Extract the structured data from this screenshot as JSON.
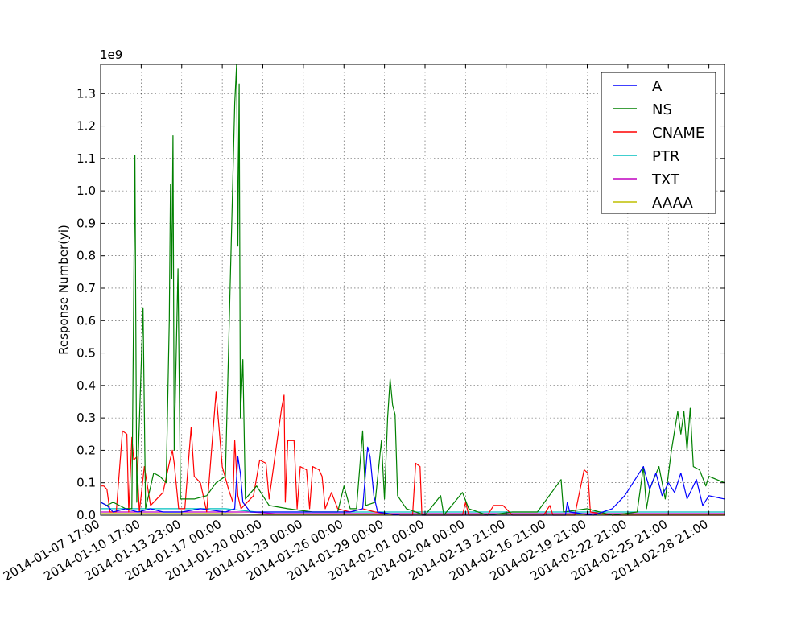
{
  "chart_data": {
    "type": "line",
    "title": "",
    "xlabel": "",
    "ylabel": "Response Number(yi)",
    "y_multiplier_label": "1e9",
    "ylim": [
      0,
      1.39
    ],
    "yticks": [
      "0.0",
      "0.1",
      "0.2",
      "0.3",
      "0.4",
      "0.5",
      "0.6",
      "0.7",
      "0.8",
      "0.9",
      "1.0",
      "1.1",
      "1.2",
      "1.3"
    ],
    "xlim": [
      0,
      1000
    ],
    "xticks": [
      {
        "x": 0,
        "label": "2014-01-07 17:00"
      },
      {
        "x": 65,
        "label": "2014-01-10 17:00"
      },
      {
        "x": 130,
        "label": "2014-01-13 23:00"
      },
      {
        "x": 195,
        "label": "2014-01-17 00:00"
      },
      {
        "x": 260,
        "label": "2014-01-20 00:00"
      },
      {
        "x": 325,
        "label": "2014-01-23 00:00"
      },
      {
        "x": 390,
        "label": "2014-01-26 00:00"
      },
      {
        "x": 455,
        "label": "2014-01-29 00:00"
      },
      {
        "x": 520,
        "label": "2014-02-01 00:00"
      },
      {
        "x": 585,
        "label": "2014-02-04 00:00"
      },
      {
        "x": 650,
        "label": "2014-02-13 21:00"
      },
      {
        "x": 715,
        "label": "2014-02-16 21:00"
      },
      {
        "x": 780,
        "label": "2014-02-19 21:00"
      },
      {
        "x": 845,
        "label": "2014-02-22 21:00"
      },
      {
        "x": 910,
        "label": "2014-02-25 21:00"
      },
      {
        "x": 975,
        "label": "2014-02-28 21:00"
      }
    ],
    "grid": true,
    "legend_position": "top-right",
    "series": [
      {
        "name": "A",
        "color": "#0000ff",
        "points": [
          [
            0,
            0.04
          ],
          [
            10,
            0.03
          ],
          [
            20,
            0.01
          ],
          [
            40,
            0.02
          ],
          [
            60,
            0.01
          ],
          [
            80,
            0.02
          ],
          [
            100,
            0.01
          ],
          [
            130,
            0.01
          ],
          [
            160,
            0.02
          ],
          [
            200,
            0.01
          ],
          [
            215,
            0.02
          ],
          [
            220,
            0.18
          ],
          [
            224,
            0.13
          ],
          [
            228,
            0.04
          ],
          [
            240,
            0.01
          ],
          [
            280,
            0.01
          ],
          [
            320,
            0.01
          ],
          [
            360,
            0.01
          ],
          [
            400,
            0.01
          ],
          [
            420,
            0.02
          ],
          [
            428,
            0.21
          ],
          [
            432,
            0.18
          ],
          [
            438,
            0.06
          ],
          [
            444,
            0.01
          ],
          [
            480,
            0.0
          ],
          [
            520,
            0.0
          ],
          [
            560,
            0.0
          ],
          [
            600,
            0.0
          ],
          [
            640,
            0.0
          ],
          [
            680,
            0.0
          ],
          [
            720,
            0.0
          ],
          [
            745,
            0.0
          ],
          [
            748,
            0.04
          ],
          [
            752,
            0.01
          ],
          [
            790,
            0.0
          ],
          [
            820,
            0.02
          ],
          [
            840,
            0.06
          ],
          [
            860,
            0.12
          ],
          [
            870,
            0.15
          ],
          [
            880,
            0.08
          ],
          [
            890,
            0.13
          ],
          [
            900,
            0.06
          ],
          [
            910,
            0.1
          ],
          [
            920,
            0.07
          ],
          [
            930,
            0.13
          ],
          [
            940,
            0.05
          ],
          [
            955,
            0.11
          ],
          [
            965,
            0.03
          ],
          [
            975,
            0.06
          ],
          [
            1000,
            0.05
          ]
        ]
      },
      {
        "name": "NS",
        "color": "#008000",
        "points": [
          [
            0,
            0.04
          ],
          [
            10,
            0.03
          ],
          [
            20,
            0.04
          ],
          [
            30,
            0.03
          ],
          [
            40,
            0.02
          ],
          [
            50,
            0.02
          ],
          [
            55,
            1.11
          ],
          [
            58,
            0.04
          ],
          [
            68,
            0.64
          ],
          [
            72,
            0.02
          ],
          [
            85,
            0.13
          ],
          [
            95,
            0.12
          ],
          [
            105,
            0.1
          ],
          [
            110,
            0.6
          ],
          [
            112,
            1.02
          ],
          [
            114,
            0.73
          ],
          [
            116,
            1.17
          ],
          [
            118,
            0.2
          ],
          [
            124,
            0.76
          ],
          [
            128,
            0.05
          ],
          [
            150,
            0.05
          ],
          [
            170,
            0.06
          ],
          [
            185,
            0.1
          ],
          [
            200,
            0.12
          ],
          [
            215,
            1.27
          ],
          [
            218,
            1.39
          ],
          [
            220,
            0.83
          ],
          [
            222,
            1.33
          ],
          [
            224,
            0.3
          ],
          [
            228,
            0.48
          ],
          [
            232,
            0.05
          ],
          [
            250,
            0.09
          ],
          [
            270,
            0.03
          ],
          [
            300,
            0.02
          ],
          [
            340,
            0.01
          ],
          [
            380,
            0.01
          ],
          [
            390,
            0.09
          ],
          [
            400,
            0.02
          ],
          [
            410,
            0.02
          ],
          [
            420,
            0.26
          ],
          [
            425,
            0.03
          ],
          [
            440,
            0.04
          ],
          [
            450,
            0.23
          ],
          [
            455,
            0.05
          ],
          [
            460,
            0.3
          ],
          [
            464,
            0.42
          ],
          [
            468,
            0.34
          ],
          [
            472,
            0.31
          ],
          [
            476,
            0.06
          ],
          [
            490,
            0.02
          ],
          [
            520,
            0.0
          ],
          [
            545,
            0.06
          ],
          [
            550,
            0.0
          ],
          [
            580,
            0.07
          ],
          [
            590,
            0.02
          ],
          [
            620,
            0.0
          ],
          [
            660,
            0.01
          ],
          [
            700,
            0.01
          ],
          [
            738,
            0.11
          ],
          [
            742,
            0.01
          ],
          [
            780,
            0.02
          ],
          [
            820,
            0.0
          ],
          [
            860,
            0.01
          ],
          [
            870,
            0.15
          ],
          [
            875,
            0.02
          ],
          [
            880,
            0.08
          ],
          [
            895,
            0.15
          ],
          [
            905,
            0.05
          ],
          [
            915,
            0.2
          ],
          [
            925,
            0.32
          ],
          [
            930,
            0.25
          ],
          [
            935,
            0.32
          ],
          [
            940,
            0.2
          ],
          [
            945,
            0.33
          ],
          [
            950,
            0.15
          ],
          [
            960,
            0.14
          ],
          [
            970,
            0.09
          ],
          [
            975,
            0.12
          ],
          [
            1000,
            0.1
          ]
        ]
      },
      {
        "name": "CNAME",
        "color": "#ff0000",
        "points": [
          [
            0,
            0.09
          ],
          [
            5,
            0.09
          ],
          [
            10,
            0.08
          ],
          [
            15,
            0.01
          ],
          [
            25,
            0.01
          ],
          [
            35,
            0.26
          ],
          [
            42,
            0.25
          ],
          [
            45,
            0.01
          ],
          [
            50,
            0.24
          ],
          [
            53,
            0.17
          ],
          [
            58,
            0.18
          ],
          [
            62,
            0.01
          ],
          [
            70,
            0.15
          ],
          [
            80,
            0.03
          ],
          [
            100,
            0.07
          ],
          [
            110,
            0.16
          ],
          [
            115,
            0.2
          ],
          [
            118,
            0.16
          ],
          [
            125,
            0.02
          ],
          [
            135,
            0.02
          ],
          [
            145,
            0.27
          ],
          [
            150,
            0.12
          ],
          [
            160,
            0.1
          ],
          [
            170,
            0.01
          ],
          [
            185,
            0.38
          ],
          [
            195,
            0.15
          ],
          [
            205,
            0.08
          ],
          [
            212,
            0.04
          ],
          [
            215,
            0.23
          ],
          [
            220,
            0.06
          ],
          [
            225,
            0.02
          ],
          [
            245,
            0.06
          ],
          [
            255,
            0.17
          ],
          [
            265,
            0.16
          ],
          [
            270,
            0.05
          ],
          [
            290,
            0.33
          ],
          [
            294,
            0.37
          ],
          [
            296,
            0.04
          ],
          [
            300,
            0.23
          ],
          [
            310,
            0.23
          ],
          [
            315,
            0.02
          ],
          [
            320,
            0.15
          ],
          [
            330,
            0.14
          ],
          [
            335,
            0.02
          ],
          [
            340,
            0.15
          ],
          [
            350,
            0.14
          ],
          [
            355,
            0.12
          ],
          [
            360,
            0.02
          ],
          [
            370,
            0.07
          ],
          [
            380,
            0.02
          ],
          [
            400,
            0.01
          ],
          [
            420,
            0.02
          ],
          [
            440,
            0.01
          ],
          [
            480,
            0.0
          ],
          [
            500,
            0.0
          ],
          [
            505,
            0.16
          ],
          [
            512,
            0.15
          ],
          [
            515,
            0.0
          ],
          [
            540,
            0.0
          ],
          [
            580,
            0.0
          ],
          [
            585,
            0.04
          ],
          [
            590,
            0.0
          ],
          [
            620,
            0.0
          ],
          [
            630,
            0.03
          ],
          [
            645,
            0.03
          ],
          [
            660,
            0.0
          ],
          [
            710,
            0.0
          ],
          [
            720,
            0.03
          ],
          [
            725,
            0.0
          ],
          [
            760,
            0.0
          ],
          [
            775,
            0.14
          ],
          [
            781,
            0.13
          ],
          [
            785,
            0.01
          ],
          [
            820,
            0.0
          ],
          [
            860,
            0.0
          ],
          [
            900,
            0.0
          ],
          [
            940,
            0.0
          ],
          [
            1000,
            0.0
          ]
        ]
      },
      {
        "name": "PTR",
        "color": "#00bfbf",
        "points": [
          [
            0,
            0.02
          ],
          [
            50,
            0.02
          ],
          [
            100,
            0.02
          ],
          [
            150,
            0.02
          ],
          [
            200,
            0.02
          ],
          [
            250,
            0.01
          ],
          [
            300,
            0.01
          ],
          [
            350,
            0.01
          ],
          [
            400,
            0.01
          ],
          [
            450,
            0.01
          ],
          [
            500,
            0.01
          ],
          [
            550,
            0.01
          ],
          [
            600,
            0.01
          ],
          [
            650,
            0.01
          ],
          [
            700,
            0.01
          ],
          [
            750,
            0.01
          ],
          [
            800,
            0.01
          ],
          [
            850,
            0.01
          ],
          [
            900,
            0.01
          ],
          [
            950,
            0.01
          ],
          [
            1000,
            0.01
          ]
        ]
      },
      {
        "name": "TXT",
        "color": "#bf00bf",
        "points": [
          [
            0,
            0.01
          ],
          [
            40,
            0.01
          ],
          [
            80,
            0.01
          ],
          [
            120,
            0.01
          ],
          [
            160,
            0.01
          ],
          [
            200,
            0.01
          ],
          [
            240,
            0.01
          ],
          [
            280,
            0.005
          ],
          [
            320,
            0.005
          ],
          [
            360,
            0.005
          ],
          [
            400,
            0.005
          ],
          [
            440,
            0.005
          ],
          [
            480,
            0.005
          ],
          [
            520,
            0.005
          ],
          [
            560,
            0.005
          ],
          [
            600,
            0.005
          ],
          [
            640,
            0.005
          ],
          [
            680,
            0.005
          ],
          [
            720,
            0.005
          ],
          [
            760,
            0.005
          ],
          [
            800,
            0.005
          ],
          [
            840,
            0.005
          ],
          [
            880,
            0.005
          ],
          [
            920,
            0.005
          ],
          [
            960,
            0.005
          ],
          [
            1000,
            0.005
          ]
        ]
      },
      {
        "name": "AAAA",
        "color": "#bfbf00",
        "points": [
          [
            0,
            0.005
          ],
          [
            50,
            0.005
          ],
          [
            100,
            0.005
          ],
          [
            150,
            0.005
          ],
          [
            200,
            0.005
          ],
          [
            250,
            0.003
          ],
          [
            300,
            0.003
          ],
          [
            350,
            0.003
          ],
          [
            400,
            0.003
          ],
          [
            450,
            0.003
          ],
          [
            500,
            0.003
          ],
          [
            550,
            0.003
          ],
          [
            600,
            0.003
          ],
          [
            650,
            0.003
          ],
          [
            700,
            0.003
          ],
          [
            750,
            0.003
          ],
          [
            800,
            0.003
          ],
          [
            850,
            0.003
          ],
          [
            900,
            0.003
          ],
          [
            950,
            0.003
          ],
          [
            1000,
            0.003
          ]
        ]
      }
    ]
  }
}
